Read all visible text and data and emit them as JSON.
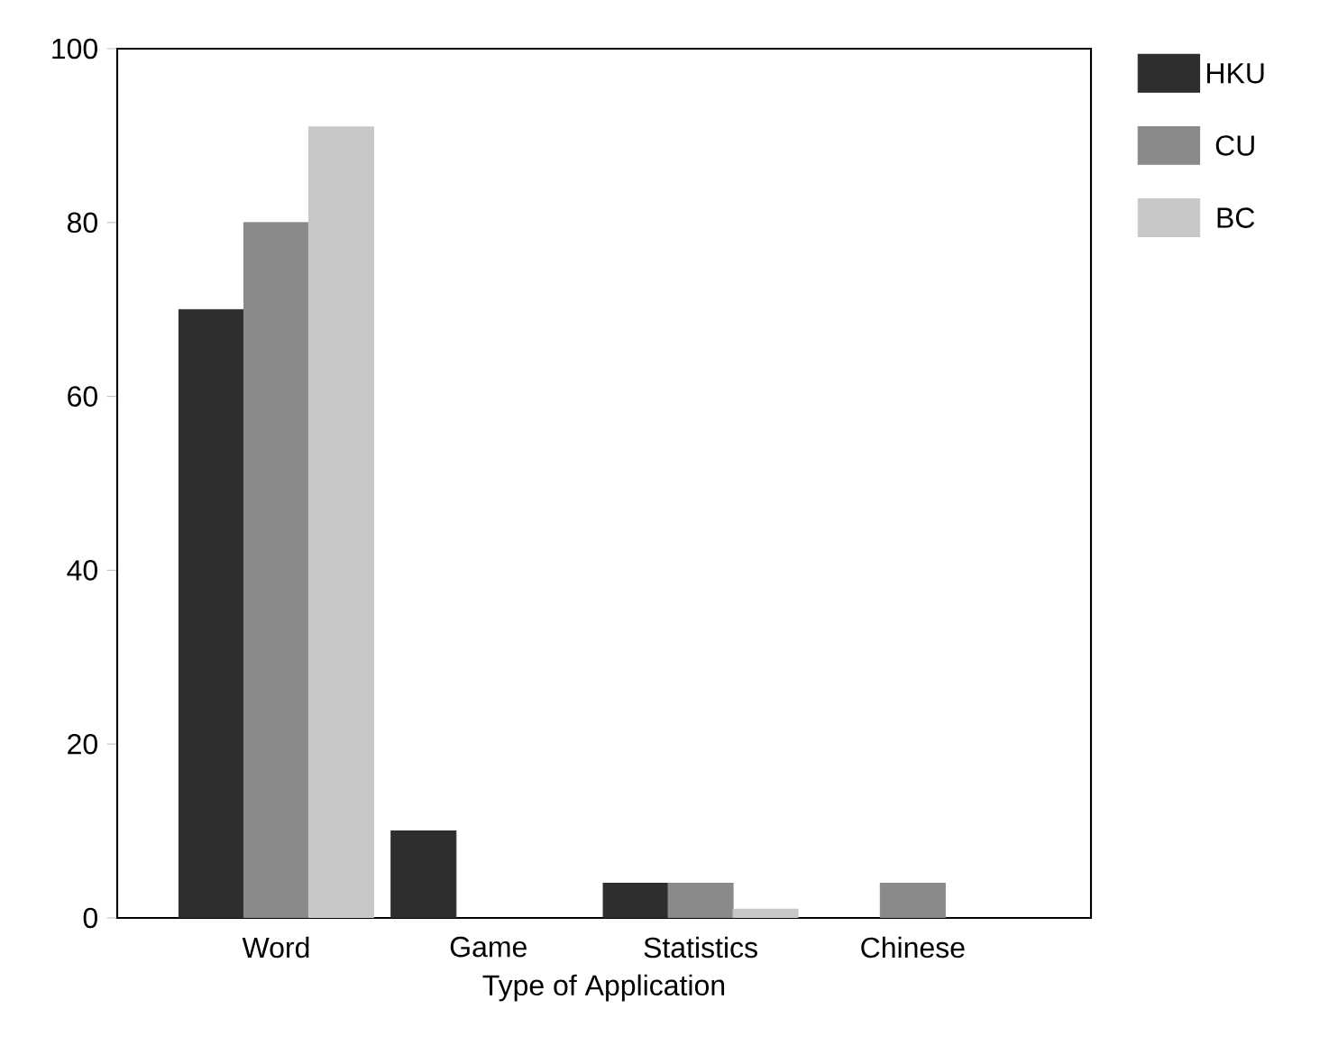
{
  "chart_data": {
    "type": "bar",
    "xlabel": "Type of Application",
    "categories": [
      "Word",
      "Game",
      "Statistics",
      "Chinese"
    ],
    "series": [
      {
        "name": "HKU",
        "color": "#2e2e2e",
        "values": [
          70,
          10,
          4,
          0
        ]
      },
      {
        "name": "CU",
        "color": "#8a8a8a",
        "values": [
          80,
          0,
          4,
          4
        ]
      },
      {
        "name": "BC",
        "color": "#c8c8c8",
        "values": [
          91,
          0,
          1,
          0
        ]
      }
    ],
    "ylim": [
      0,
      100
    ],
    "yticks": [
      0,
      20,
      40,
      60,
      80,
      100
    ],
    "legend": "top right",
    "grid": false
  }
}
